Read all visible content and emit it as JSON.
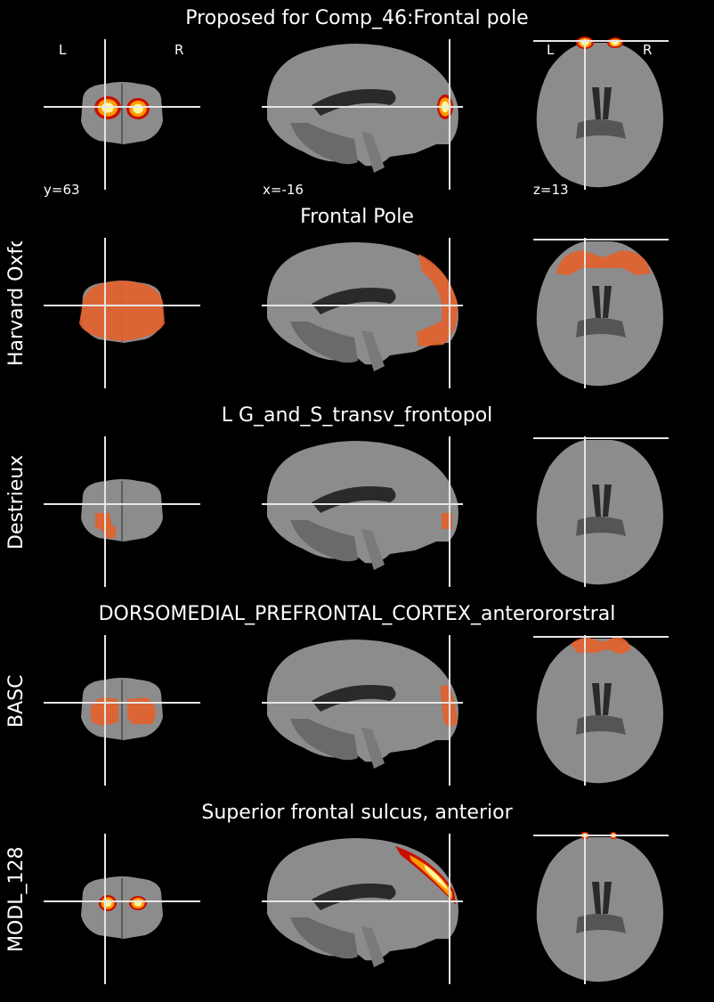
{
  "rows": [
    {
      "title": "Proposed for Comp_46:Frontal pole",
      "label": "",
      "style": "heat"
    },
    {
      "title": "Frontal Pole",
      "label": "Harvard Oxford",
      "style": "orange-full"
    },
    {
      "title": "L G_and_S_transv_frontopol",
      "label": "Destrieux",
      "style": "orange-small"
    },
    {
      "title": "DORSOMEDIAL_PREFRONTAL_CORTEX_anterororstral",
      "label": "BASC",
      "style": "orange-mid"
    },
    {
      "title": "Superior frontal sulcus, anterior",
      "label": "MODL_128",
      "style": "heat-thin"
    }
  ],
  "orientation": {
    "left": "L",
    "right": "R"
  },
  "coords": {
    "y": "y=63",
    "x": "x=-16",
    "z": "z=13"
  },
  "colors": {
    "background": "#000000",
    "brain": "#8c8c8c",
    "crosshair": "#e6e6e6",
    "overlay_orange": "#e2622e",
    "heat_core": "#fff6a0",
    "heat_mid": "#ff9a00",
    "heat_edge": "#c81000"
  }
}
